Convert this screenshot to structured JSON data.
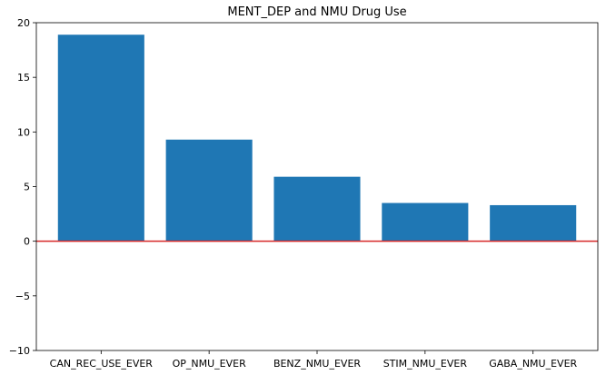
{
  "chart_data": {
    "type": "bar",
    "title": "MENT_DEP and NMU Drug Use",
    "xlabel": "",
    "ylabel": "",
    "categories": [
      "CAN_REC_USE_EVER",
      "OP_NMU_EVER",
      "BENZ_NMU_EVER",
      "STIM_NMU_EVER",
      "GABA_NMU_EVER"
    ],
    "values": [
      18.9,
      9.3,
      5.9,
      3.5,
      3.3
    ],
    "ylim": [
      -10,
      20
    ],
    "yticks": [
      -10,
      -5,
      0,
      5,
      10,
      15,
      20
    ],
    "ytick_labels": [
      "−10",
      "−5",
      "0",
      "5",
      "10",
      "15",
      "20"
    ],
    "reference_line": {
      "y": 0,
      "color": "#d62728"
    },
    "bar_color": "#1f77b4",
    "grid": false,
    "legend": "none"
  }
}
